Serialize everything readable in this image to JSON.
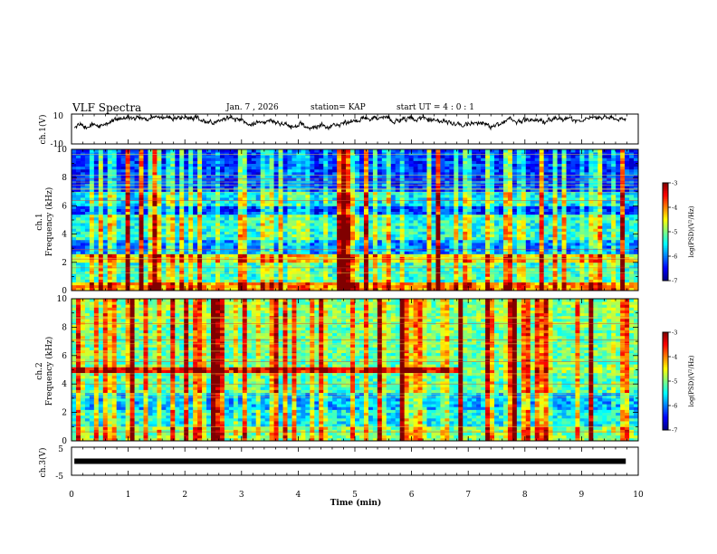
{
  "header": {
    "title": "VLF Spectra",
    "date": "Jan. 7 , 2026",
    "station": "station= KAP",
    "start": "start UT =  4 : 0 : 1"
  },
  "chart_data": [
    {
      "type": "line",
      "panel": "ch1-waveform",
      "ylabel": "ch.1(V)",
      "ylim": [
        -10,
        10
      ],
      "ytick_labels": [
        "10",
        "-10"
      ],
      "xlim": [
        0,
        10
      ],
      "description_values": {
        "typical_min": -3,
        "typical_max": 8
      }
    },
    {
      "type": "heatmap",
      "panel": "ch1-spectrogram",
      "ylabel": "ch.1 Frequency (kHz)",
      "ylabel_line1": "ch.1",
      "ylabel_line2": "Frequency (kHz)",
      "ylim": [
        0,
        10
      ],
      "yticks": [
        0,
        2,
        4,
        6,
        8,
        10
      ],
      "ytick_labels": [
        "0",
        "2",
        "4",
        "6",
        "8",
        "10"
      ],
      "xlim": [
        0,
        10
      ],
      "bands_khz": [
        {
          "from": 0,
          "to": 0.6,
          "level": -4.2
        },
        {
          "from": 0.6,
          "to": 2.0,
          "level": -5.3
        },
        {
          "from": 2.0,
          "to": 2.6,
          "level": -4.6
        },
        {
          "from": 2.6,
          "to": 3.6,
          "level": -6.0
        },
        {
          "from": 3.6,
          "to": 5.4,
          "level": -5.4
        },
        {
          "from": 5.4,
          "to": 6.0,
          "level": -6.3
        },
        {
          "from": 6.0,
          "to": 7.0,
          "level": -5.6
        },
        {
          "from": 7.0,
          "to": 10.0,
          "level": -6.3
        }
      ],
      "colorbar": {
        "label": "log(PSD)(V²/Hz)",
        "range": [
          -7,
          -3
        ],
        "ticks": [
          "-3",
          "-4",
          "-5",
          "-6",
          "-7"
        ]
      }
    },
    {
      "type": "heatmap",
      "panel": "ch2-spectrogram",
      "ylabel": "ch.2 Frequency (kHz)",
      "ylabel_line1": "ch.2",
      "ylabel_line2": "Frequency (kHz)",
      "ylim": [
        0,
        10
      ],
      "yticks": [
        0,
        2,
        4,
        6,
        8,
        10
      ],
      "ytick_labels": [
        "0",
        "2",
        "4",
        "6",
        "8",
        "10"
      ],
      "xlim": [
        0,
        10
      ],
      "bands_khz": [
        {
          "from": 0,
          "to": 1.0,
          "level": -5.0
        },
        {
          "from": 1.0,
          "to": 2.2,
          "level": -5.5
        },
        {
          "from": 2.2,
          "to": 3.4,
          "level": -5.8
        },
        {
          "from": 3.4,
          "to": 4.8,
          "level": -5.2
        },
        {
          "from": 4.8,
          "to": 5.2,
          "level": -3.6
        },
        {
          "from": 5.2,
          "to": 8.0,
          "level": -5.1
        },
        {
          "from": 8.0,
          "to": 10.0,
          "level": -5.0
        }
      ],
      "colorbar": {
        "label": "log(PSD)(V²/Hz)",
        "range": [
          -7,
          -3
        ],
        "ticks": [
          "-3",
          "-4",
          "-5",
          "-6",
          "-7"
        ]
      }
    },
    {
      "type": "line",
      "panel": "ch3-waveform",
      "ylabel": "ch.3(V)",
      "ylim": [
        -5,
        5
      ],
      "ytick_labels": [
        "5",
        "-5"
      ],
      "xlim": [
        0,
        10
      ],
      "description_values": {
        "constant_level": 0
      }
    }
  ],
  "xaxis": {
    "label": "Time (min)",
    "ticks": [
      "0",
      "1",
      "2",
      "3",
      "4",
      "5",
      "6",
      "7",
      "8",
      "9",
      "10"
    ]
  },
  "colors": {
    "line": "#000000",
    "background": "#ffffff"
  }
}
